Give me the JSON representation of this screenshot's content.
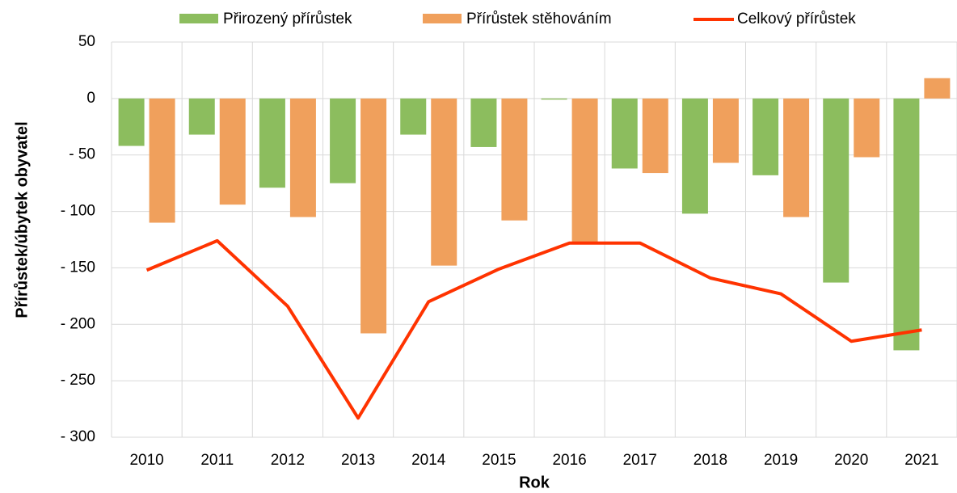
{
  "chart_data": {
    "type": "bar-line",
    "x_label": "Rok",
    "y_label": "Přírůstek/úbytek obyvatel",
    "categories": [
      "2010",
      "2011",
      "2012",
      "2013",
      "2014",
      "2015",
      "2016",
      "2017",
      "2018",
      "2019",
      "2020",
      "2021"
    ],
    "series": [
      {
        "name": "Přirozený přírůstek",
        "type": "bar",
        "color": "#8cbd5e",
        "values": [
          -42,
          -32,
          -79,
          -75,
          -32,
          -43,
          -1,
          -62,
          -102,
          -68,
          -163,
          -223
        ]
      },
      {
        "name": "Přírůstek stěhováním",
        "type": "bar",
        "color": "#f0a05c",
        "values": [
          -110,
          -94,
          -105,
          -208,
          -148,
          -108,
          -127,
          -66,
          -57,
          -105,
          -52,
          18
        ]
      },
      {
        "name": "Celkový přírůstek",
        "type": "line",
        "color": "#ff3300",
        "values": [
          -152,
          -126,
          -184,
          -283,
          -180,
          -151,
          -128,
          -128,
          -159,
          -173,
          -215,
          -205
        ]
      }
    ],
    "ylim": [
      -300,
      50
    ],
    "yticks": [
      {
        "value": -300,
        "label": "- 300"
      },
      {
        "value": -250,
        "label": "- 250"
      },
      {
        "value": -200,
        "label": "- 200"
      },
      {
        "value": -150,
        "label": "- 150"
      },
      {
        "value": -100,
        "label": "- 100"
      },
      {
        "value": -50,
        "label": "- 50"
      },
      0,
      50
    ],
    "grid": true
  }
}
